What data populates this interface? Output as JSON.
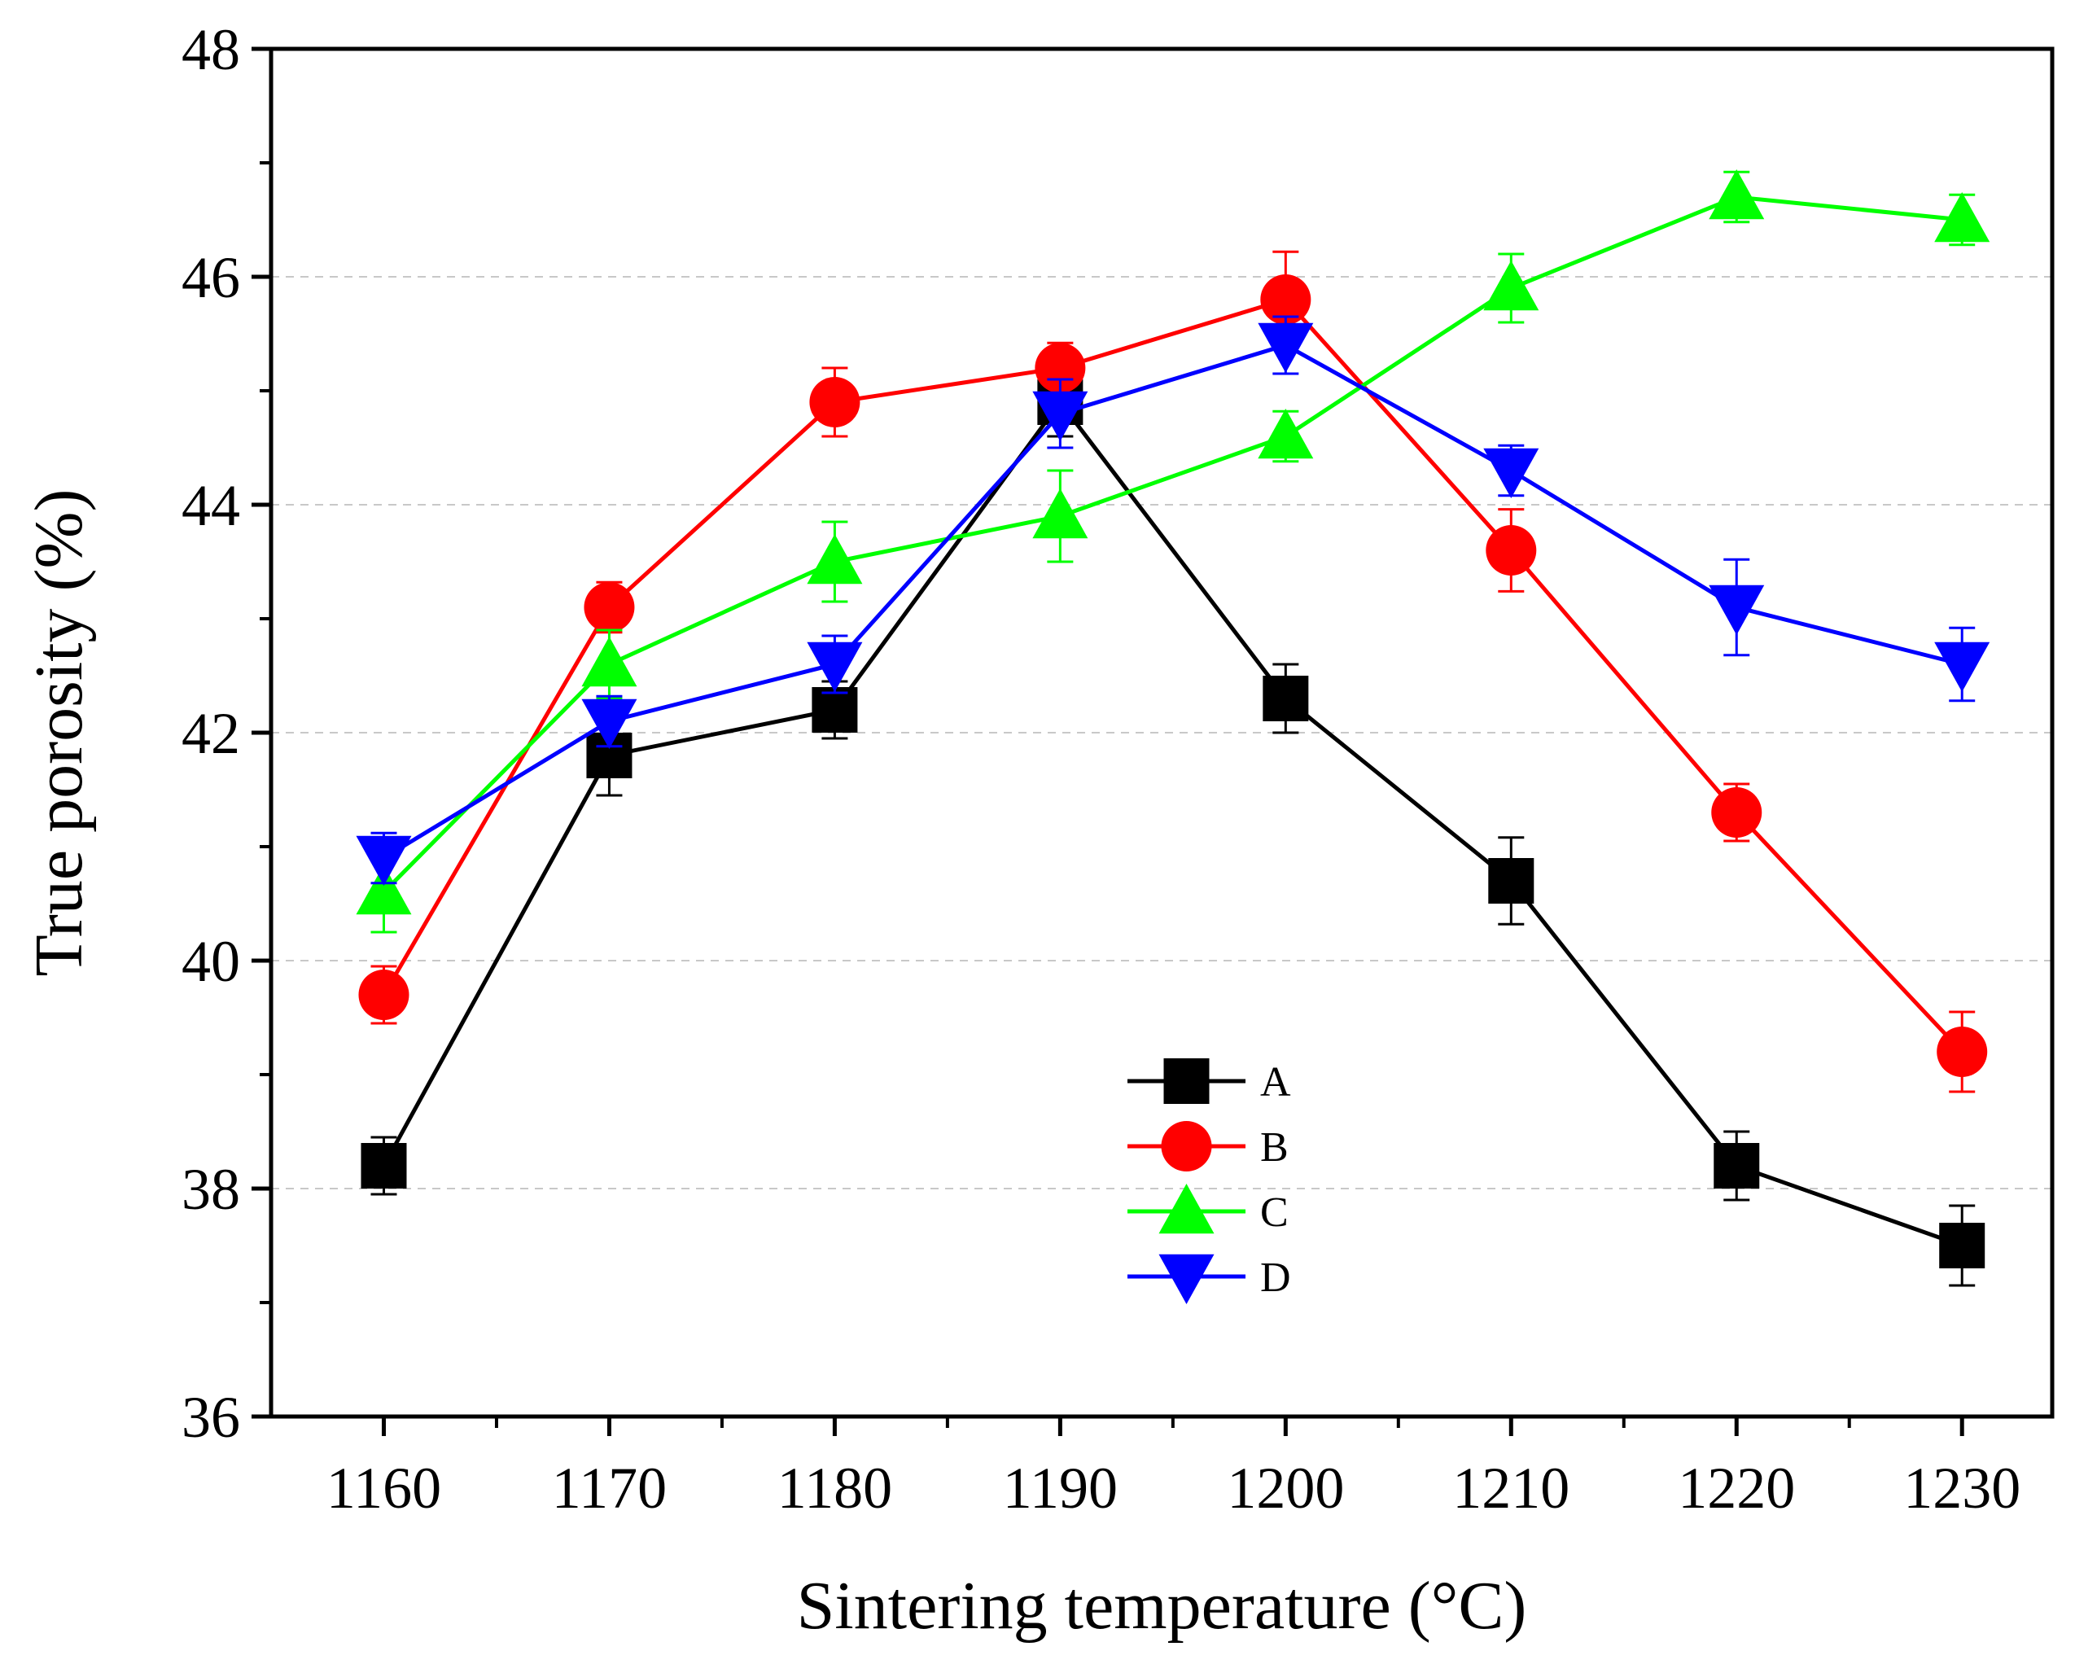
{
  "chart_data": {
    "type": "line",
    "title": "",
    "xlabel": "Sintering temperature (°C)",
    "ylabel": "True porosity (%)",
    "x": [
      1160,
      1170,
      1180,
      1190,
      1200,
      1210,
      1220,
      1230
    ],
    "xlim": [
      1155,
      1234
    ],
    "ylim": [
      36,
      48
    ],
    "xticks": [
      "1160",
      "1170",
      "1180",
      "1190",
      "1200",
      "1210",
      "1220",
      "1230"
    ],
    "yticks": [
      "36",
      "38",
      "40",
      "42",
      "44",
      "46",
      "48"
    ],
    "grid": "horizontal dashed",
    "legend_position": "lower-center",
    "series": [
      {
        "name": "A",
        "color": "#000000",
        "marker": "square",
        "values": [
          38.2,
          41.8,
          42.2,
          44.9,
          42.3,
          40.7,
          38.2,
          37.5
        ],
        "errors": [
          0.25,
          0.35,
          0.25,
          0.3,
          0.3,
          0.38,
          0.3,
          0.35
        ]
      },
      {
        "name": "B",
        "color": "#ff0000",
        "marker": "circle",
        "values": [
          39.7,
          43.1,
          44.9,
          45.2,
          45.8,
          43.6,
          41.3,
          39.2
        ],
        "errors": [
          0.25,
          0.22,
          0.3,
          0.22,
          0.42,
          0.36,
          0.25,
          0.35
        ]
      },
      {
        "name": "C",
        "color": "#00ff00",
        "marker": "triangle-up",
        "values": [
          40.6,
          42.6,
          43.5,
          43.9,
          44.6,
          45.9,
          46.7,
          46.5
        ],
        "errors": [
          0.35,
          0.3,
          0.35,
          0.4,
          0.22,
          0.3,
          0.22,
          0.22
        ]
      },
      {
        "name": "D",
        "color": "#0000ff",
        "marker": "triangle-down",
        "values": [
          40.9,
          42.1,
          42.6,
          44.8,
          45.4,
          44.3,
          43.1,
          42.6
        ],
        "errors": [
          0.22,
          0.22,
          0.25,
          0.3,
          0.25,
          0.22,
          0.42,
          0.32
        ]
      }
    ]
  }
}
